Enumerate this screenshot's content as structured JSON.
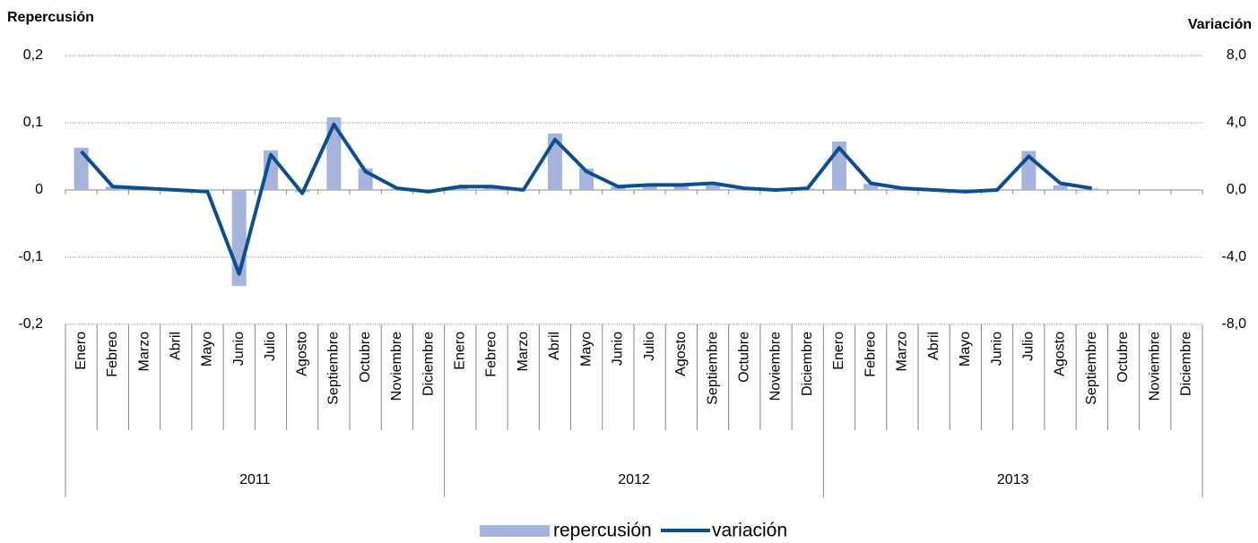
{
  "chart_data": {
    "type": "bar_line",
    "y_label": "Repercusión",
    "y2_label": "Variación",
    "categories": [
      "Enero",
      "Febreo",
      "Marzo",
      "Abril",
      "Mayo",
      "Junio",
      "Julio",
      "Agosto",
      "Septiembre",
      "Octubre",
      "Noviembre",
      "Diciembre",
      "Enero",
      "Febreo",
      "Marzo",
      "Abril",
      "Mayo",
      "Junio",
      "Julio",
      "Agosto",
      "Septiembre",
      "Octubre",
      "Noviembre",
      "Diciembre",
      "Enero",
      "Febreo",
      "Marzo",
      "Abril",
      "Mayo",
      "Junio",
      "Julio",
      "Agosto",
      "Septiembre",
      "Octubre",
      "Noviembre",
      "Diciembre"
    ],
    "groups": [
      "2011",
      "2012",
      "2013"
    ],
    "series": [
      {
        "name": "repercusión",
        "type": "bar",
        "color": "#a5b3dd",
        "values": [
          0.063,
          0.005,
          0.002,
          0,
          -0.001,
          -0.143,
          0.059,
          -0.003,
          0.108,
          0.032,
          0.002,
          0,
          0.004,
          0.004,
          0.001,
          0.084,
          0.032,
          0.005,
          0.006,
          0.006,
          0.007,
          0.002,
          0,
          0.002,
          0.072,
          0.009,
          0.002,
          0.001,
          -0.001,
          0,
          0.058,
          0.007,
          0.002,
          null,
          null,
          null
        ]
      },
      {
        "name": "variación",
        "type": "line",
        "axis": "y2",
        "color": "#0b4f8f",
        "values": [
          2.3,
          0.2,
          0.1,
          0.0,
          -0.1,
          -5.0,
          2.1,
          -0.2,
          3.9,
          1.1,
          0.1,
          -0.1,
          0.2,
          0.2,
          0.0,
          3.0,
          1.1,
          0.2,
          0.3,
          0.3,
          0.4,
          0.1,
          0.0,
          0.1,
          2.5,
          0.4,
          0.1,
          0.0,
          -0.1,
          0.0,
          2.0,
          0.4,
          0.1,
          null,
          null,
          null
        ]
      }
    ],
    "ylim": [
      -0.2,
      0.2
    ],
    "yticks": [
      {
        "value": -0.2,
        "label": "-0,2"
      },
      {
        "value": -0.1,
        "label": "-0,1"
      },
      0,
      {
        "value": 0.1,
        "label": "0,1"
      },
      {
        "value": 0.2,
        "label": "0,2"
      }
    ],
    "y2lim": [
      -8,
      8
    ],
    "y2ticks": [
      {
        "value": -8,
        "label": "-8,0"
      },
      {
        "value": -4,
        "label": "-4,0"
      },
      {
        "value": 0,
        "label": "0,0"
      },
      {
        "value": 4,
        "label": "4,0"
      },
      {
        "value": 8,
        "label": "8,0"
      }
    ],
    "grid": true
  }
}
